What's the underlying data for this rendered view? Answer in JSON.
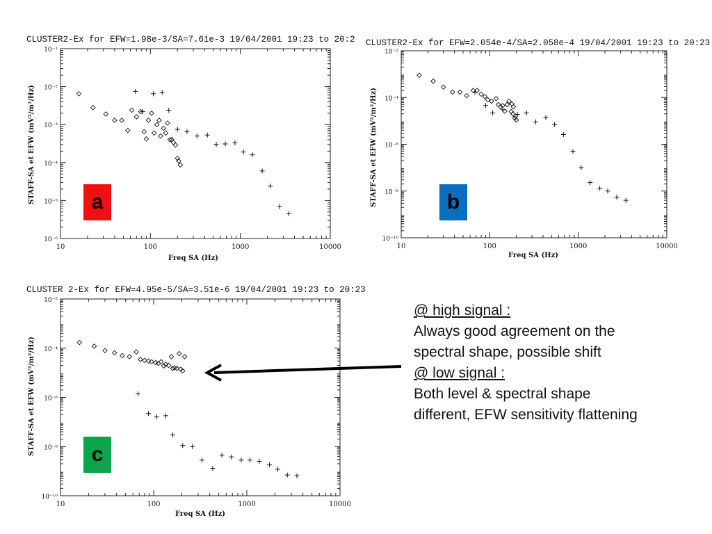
{
  "slide": {
    "note": {
      "high_heading": "@ high signal :",
      "high_line1": "Always good agreement on the",
      "high_line2": "spectral shape, possible shift",
      "low_heading": "@ low signal :",
      "low_line1": "Both level & spectral shape",
      "low_line2": "different, EFW sensitivity flattening"
    },
    "arrow": {
      "color": "#000000"
    }
  },
  "chart_data": [
    {
      "id": "a",
      "type": "scatter",
      "title": "CLUSTER2-Ex for EFW=1.98e-3/SA=7.61e-3 19/04/2001 19:23 to 20:2",
      "xlabel": "Freq SA (Hz)",
      "ylabel": "STAFF-SA et EFW (mV²/m²/Hz)",
      "xscale": "log",
      "yscale": "log",
      "xlim": [
        10,
        10000
      ],
      "ylim": [
        1e-06,
        0.1
      ],
      "xticklabels": [
        "10",
        "100",
        "1000",
        "10000"
      ],
      "yticklabels": [
        "10⁻⁶",
        "10⁻⁵",
        "10⁻⁴",
        "10⁻³",
        "10⁻²",
        "10⁻¹"
      ],
      "badge": {
        "label": "a",
        "color": "#ee1111"
      },
      "series": [
        {
          "marker": "diamond",
          "points": [
            [
              16,
              0.0065
            ],
            [
              23,
              0.0028
            ],
            [
              32,
              0.0019
            ],
            [
              40,
              0.0013
            ],
            [
              48,
              0.0013
            ],
            [
              56,
              0.0007
            ],
            [
              62,
              0.0024
            ],
            [
              70,
              0.0016
            ],
            [
              78,
              0.0022
            ],
            [
              85,
              0.00065
            ],
            [
              90,
              0.00042
            ],
            [
              95,
              0.0013
            ],
            [
              103,
              0.002
            ],
            [
              110,
              0.0006
            ],
            [
              118,
              0.001
            ],
            [
              125,
              0.0013
            ],
            [
              130,
              0.0005
            ],
            [
              140,
              0.0008
            ],
            [
              148,
              0.0006
            ],
            [
              155,
              0.0011
            ],
            [
              165,
              0.0004
            ],
            [
              172,
              0.0004
            ],
            [
              180,
              0.00034
            ],
            [
              190,
              0.00029
            ],
            [
              200,
              0.00013
            ],
            [
              206,
              0.00011
            ],
            [
              215,
              8.7e-05
            ]
          ]
        },
        {
          "marker": "plus",
          "points": [
            [
              68,
              0.0075
            ],
            [
              82,
              0.0022
            ],
            [
              108,
              0.0065
            ],
            [
              135,
              0.007
            ],
            [
              160,
              0.0024
            ],
            [
              200,
              0.00075
            ],
            [
              255,
              0.00065
            ],
            [
              330,
              0.0005
            ],
            [
              430,
              0.00053
            ],
            [
              540,
              0.0003
            ],
            [
              680,
              0.00031
            ],
            [
              870,
              0.00033
            ],
            [
              1080,
              0.00019
            ],
            [
              1360,
              0.00016
            ],
            [
              1750,
              6e-05
            ],
            [
              2150,
              2.4e-05
            ],
            [
              2720,
              7e-06
            ],
            [
              3450,
              4.5e-06
            ]
          ]
        }
      ]
    },
    {
      "id": "b",
      "type": "scatter",
      "title": "CLUSTER2-Ex for EFW=2.054e-4/SA=2.058e-4 19/04/2001 19:23 to 20:23",
      "xlabel": "Freq SA (Hz)",
      "ylabel": "STAFF-SA et EFW (mV²/m²/Hz)",
      "xscale": "log",
      "yscale": "log",
      "xlim": [
        10,
        10000
      ],
      "ylim": [
        1e-10,
        0.01
      ],
      "xticklabels": [
        "10",
        "100",
        "1000",
        "10000"
      ],
      "yticklabels": [
        "10⁻¹⁰",
        "10⁻⁸",
        "10⁻⁶",
        "10⁻⁴",
        "10⁻²"
      ],
      "badge": {
        "label": "b",
        "color": "#0a6ebd"
      },
      "series": [
        {
          "marker": "diamond",
          "points": [
            [
              16,
              0.0009
            ],
            [
              23,
              0.0005
            ],
            [
              30,
              0.00028
            ],
            [
              38,
              0.00017
            ],
            [
              46,
              0.00017
            ],
            [
              55,
              0.00012
            ],
            [
              65,
              0.0002
            ],
            [
              72,
              0.0002
            ],
            [
              80,
              0.00014
            ],
            [
              88,
              0.00011
            ],
            [
              95,
              8e-05
            ],
            [
              105,
              7e-05
            ],
            [
              118,
              9e-05
            ],
            [
              125,
              5e-05
            ],
            [
              132,
              4e-05
            ],
            [
              140,
              4.5e-05
            ],
            [
              148,
              2.6e-05
            ],
            [
              157,
              5e-05
            ],
            [
              165,
              7e-05
            ],
            [
              175,
              2.5e-05
            ],
            [
              183,
              2e-05
            ],
            [
              192,
              1.3e-05
            ],
            [
              200,
              1.1e-05
            ],
            [
              178,
              5.3e-05
            ],
            [
              185,
              4e-05
            ],
            [
              195,
              1.6e-05
            ]
          ]
        },
        {
          "marker": "plus",
          "points": [
            [
              68,
              0.00017
            ],
            [
              90,
              4.5e-05
            ],
            [
              108,
              2.2e-05
            ],
            [
              140,
              3e-05
            ],
            [
              205,
              1.9e-05
            ],
            [
              260,
              2.2e-05
            ],
            [
              330,
              9e-06
            ],
            [
              430,
              1.4e-05
            ],
            [
              540,
              7e-06
            ],
            [
              680,
              2.6e-06
            ],
            [
              870,
              5e-07
            ],
            [
              1080,
              1e-07
            ],
            [
              1360,
              2.3e-08
            ],
            [
              1750,
              1.3e-08
            ],
            [
              2150,
              1e-08
            ],
            [
              2720,
              5.5e-09
            ],
            [
              3450,
              4e-09
            ]
          ]
        }
      ]
    },
    {
      "id": "c",
      "type": "scatter",
      "title": "CLUSTER 2-Ex for EFW=4.95e-5/SA=3.51e-6 19/04/2001 19:23 to 20:23",
      "xlabel": "Freq SA (Hz)",
      "ylabel": "STAFF-SA et EFW (mV²/m²/Hz)",
      "xscale": "log",
      "yscale": "log",
      "xlim": [
        10,
        10000
      ],
      "ylim": [
        1e-10,
        0.01
      ],
      "xticklabels": [
        "10",
        "100",
        "1000",
        "10000"
      ],
      "yticklabels": [
        "10⁻¹⁰",
        "10⁻⁸",
        "10⁻⁶",
        "10⁻⁴",
        "10⁻²"
      ],
      "badge": {
        "label": "c",
        "color": "#0aa54a"
      },
      "series": [
        {
          "marker": "diamond",
          "points": [
            [
              16,
              0.00017
            ],
            [
              23,
              0.00012
            ],
            [
              30,
              8e-05
            ],
            [
              38,
              6.5e-05
            ],
            [
              46,
              5e-05
            ],
            [
              55,
              4.5e-05
            ],
            [
              65,
              7e-05
            ],
            [
              72,
              3.5e-05
            ],
            [
              80,
              3.2e-05
            ],
            [
              88,
              3e-05
            ],
            [
              95,
              2.8e-05
            ],
            [
              105,
              2.6e-05
            ],
            [
              112,
              2.4e-05
            ],
            [
              120,
              2.8e-05
            ],
            [
              128,
              1.9e-05
            ],
            [
              135,
              2.2e-05
            ],
            [
              145,
              2e-05
            ],
            [
              155,
              4.5e-05
            ],
            [
              160,
              1.5e-05
            ],
            [
              168,
              1.6e-05
            ],
            [
              178,
              1.5e-05
            ],
            [
              188,
              6e-05
            ],
            [
              195,
              1.4e-05
            ],
            [
              205,
              1.2e-05
            ],
            [
              215,
              4.5e-05
            ]
          ]
        },
        {
          "marker": "plus",
          "points": [
            [
              68,
              1.4e-06
            ],
            [
              88,
              2.2e-07
            ],
            [
              108,
              1.6e-07
            ],
            [
              135,
              1.8e-07
            ],
            [
              160,
              3e-08
            ],
            [
              205,
              1.1e-08
            ],
            [
              260,
              1e-08
            ],
            [
              330,
              2.8e-09
            ],
            [
              430,
              1.3e-09
            ],
            [
              540,
              4.5e-09
            ],
            [
              680,
              3.8e-09
            ],
            [
              870,
              2.8e-09
            ],
            [
              1080,
              2.8e-09
            ],
            [
              1360,
              2.5e-09
            ],
            [
              1750,
              1.8e-09
            ],
            [
              2150,
              1.2e-09
            ],
            [
              2720,
              7e-10
            ],
            [
              3450,
              6.5e-10
            ]
          ]
        }
      ]
    }
  ]
}
